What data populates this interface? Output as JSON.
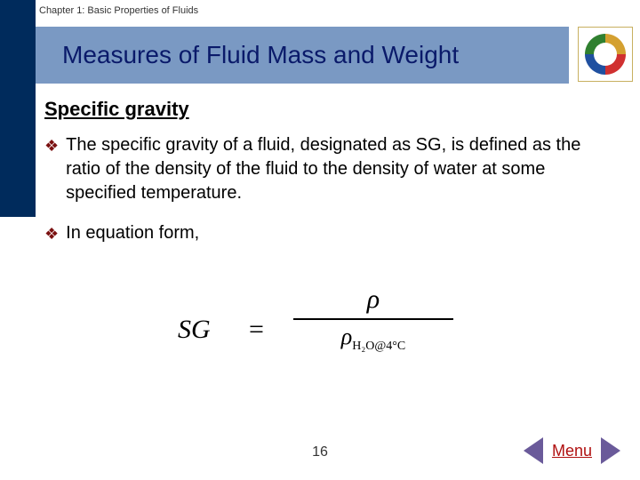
{
  "colors": {
    "dark_blue": "#002b5c",
    "title_bg": "#7a99c3",
    "title_text": "#0a1a6a",
    "bullet_color": "#7a1010",
    "arrow_color": "#6a5a9a",
    "menu_color": "#b01010",
    "page_bg": "#ffffff"
  },
  "header": {
    "chapter": "Chapter 1: Basic Properties of Fluids",
    "title": "Measures of Fluid Mass and Weight"
  },
  "content": {
    "section_title": "Specific gravity",
    "bullets": [
      "The specific gravity of a fluid, designated as SG, is defined as the ratio of the density of the fluid to the density of water at some specified temperature.",
      "In equation form,"
    ]
  },
  "equation": {
    "lhs": "SG",
    "equals": "=",
    "numerator": "ρ",
    "denominator_main": "ρ",
    "denominator_sub": "H₂O@4°C"
  },
  "footer": {
    "page_number": "16",
    "menu_label": "Menu"
  }
}
